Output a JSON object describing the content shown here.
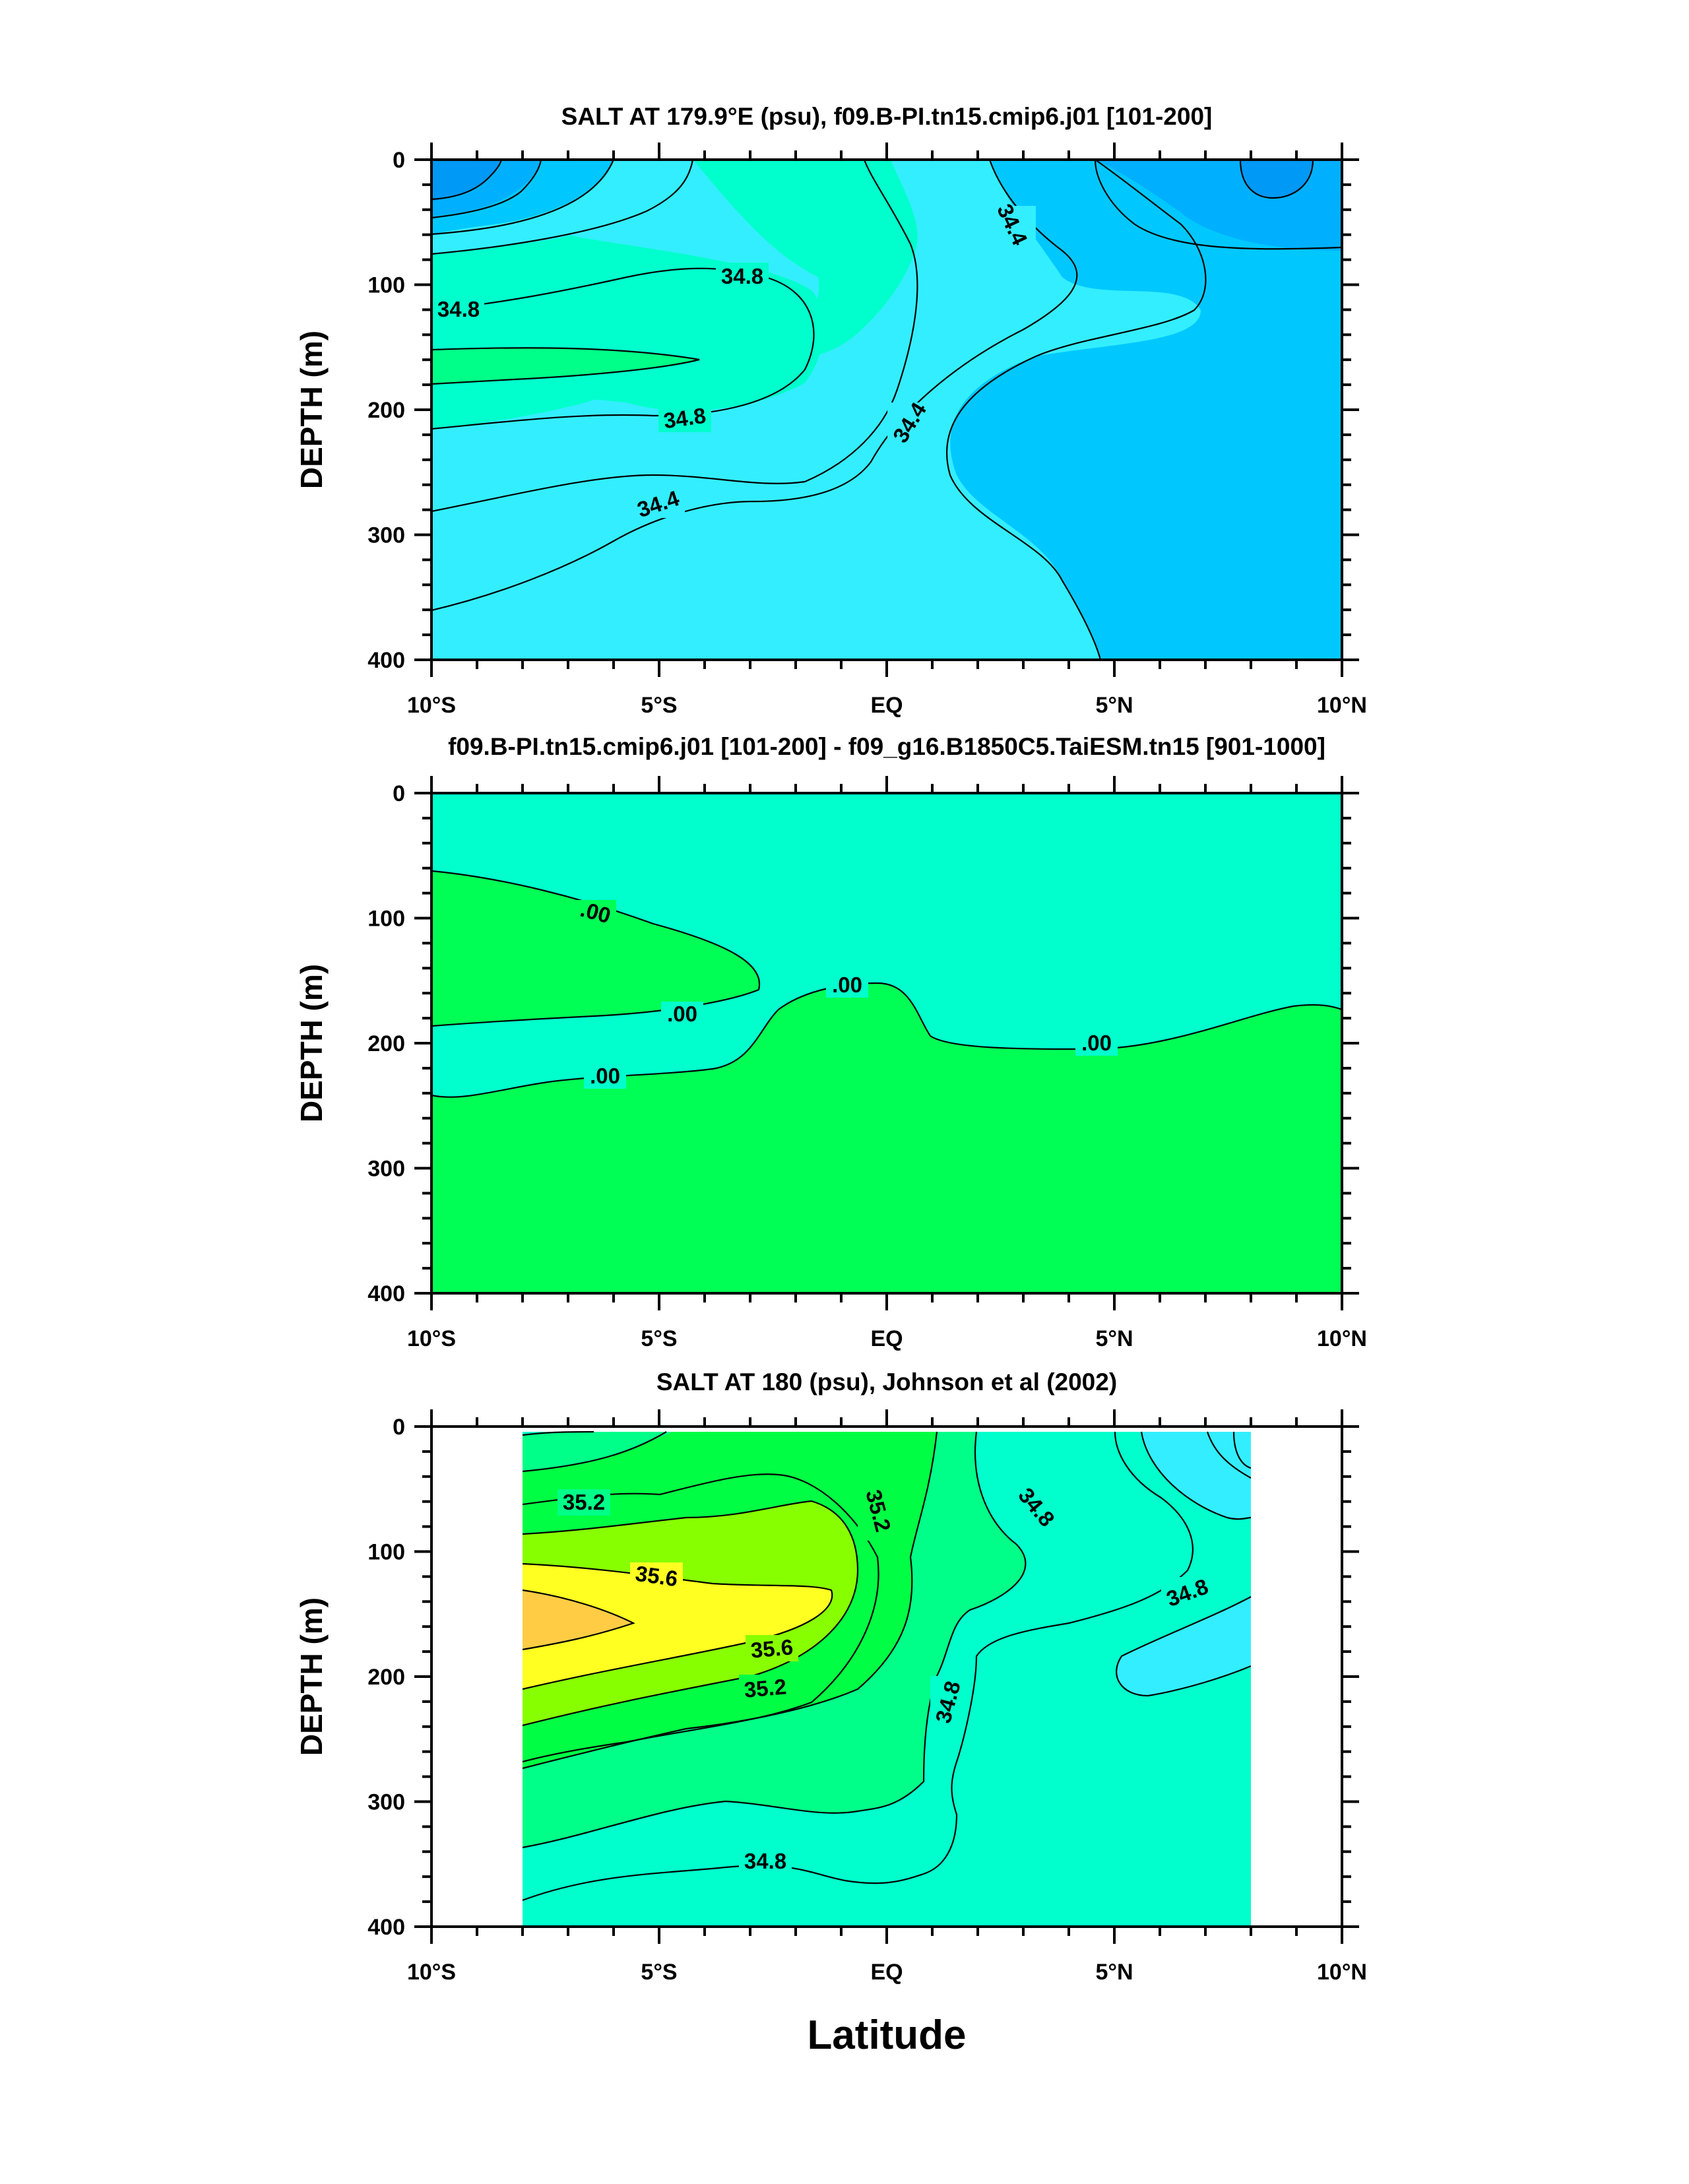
{
  "chart_data": [
    {
      "type": "contour",
      "title": "SALT AT 179.9°E (psu), f09.B-PI.tn15.cmip6.j01 [101-200]",
      "ylabel": "DEPTH (m)",
      "xlabel": "",
      "xlim": [
        -10,
        10
      ],
      "ylim": [
        0,
        400
      ],
      "y_inverted": true,
      "x_ticks": [
        "10°S",
        "5°S",
        "EQ",
        "5°N",
        "10°N"
      ],
      "y_ticks": [
        "0",
        "100",
        "200",
        "300",
        "400"
      ],
      "contour_labels": [
        "34.4",
        "34.8",
        "34.8",
        "34.8",
        "34.4",
        "34.4"
      ],
      "fill_colors": {
        "very_low": "#0099f5",
        "low": "#00b0ff",
        "mid_low": "#00c8ff",
        "mid": "#33eeff",
        "mid_high": "#00ffcc",
        "high": "#00ff88"
      },
      "field": {
        "x": [
          -10,
          -5,
          0,
          5,
          10
        ],
        "salinity_at_depth_0": [
          34.2,
          34.4,
          34.4,
          34.2,
          34.0
        ],
        "salinity_at_depth_150": [
          35.0,
          34.8,
          34.5,
          34.3,
          34.3
        ],
        "salinity_at_depth_350": [
          34.4,
          34.4,
          34.5,
          34.3,
          34.3
        ]
      }
    },
    {
      "type": "contour",
      "title": "f09.B-PI.tn15.cmip6.j01 [101-200] - f09_g16.B1850C5.TaiESM.tn15 [901-1000]",
      "ylabel": "DEPTH (m)",
      "xlabel": "",
      "xlim": [
        -10,
        10
      ],
      "ylim": [
        0,
        400
      ],
      "y_inverted": true,
      "x_ticks": [
        "10°S",
        "5°S",
        "EQ",
        "5°N",
        "10°N"
      ],
      "y_ticks": [
        "0",
        "100",
        "200",
        "300",
        "400"
      ],
      "contour_labels": [
        ".00",
        ".00",
        ".00",
        ".00",
        ".00"
      ],
      "fill_colors": {
        "negative": "#00ffcc",
        "positive": "#00ff55"
      }
    },
    {
      "type": "contour",
      "title": "SALT AT 180 (psu), Johnson et al (2002)",
      "ylabel": "DEPTH (m)",
      "xlabel": "Latitude",
      "xlim": [
        -10,
        10
      ],
      "ylim": [
        0,
        400
      ],
      "y_inverted": true,
      "data_xrange": [
        -8,
        8
      ],
      "x_ticks": [
        "10°S",
        "5°S",
        "EQ",
        "5°N",
        "10°N"
      ],
      "y_ticks": [
        "0",
        "100",
        "200",
        "300",
        "400"
      ],
      "contour_labels": [
        "35.2",
        "35.2",
        "35.6",
        "35.6",
        "35.2",
        "34.8",
        "34.8",
        "34.8",
        "34.8"
      ],
      "fill_colors": {
        "c34_6": "#33eeff",
        "c34_8": "#00ffcc",
        "c35_0": "#00ff88",
        "c35_2": "#00ff44",
        "c35_4": "#88ff00",
        "c35_6": "#ffff22",
        "c35_8": "#ffcc44"
      },
      "field": {
        "x": [
          -8,
          -4,
          0,
          4,
          8
        ],
        "salinity_at_depth_0": [
          34.8,
          35.0,
          35.1,
          34.8,
          34.6
        ],
        "salinity_at_depth_160": [
          35.8,
          35.6,
          35.0,
          34.8,
          34.6
        ],
        "salinity_at_depth_350": [
          34.9,
          34.8,
          34.8,
          34.8,
          34.8
        ]
      }
    }
  ]
}
